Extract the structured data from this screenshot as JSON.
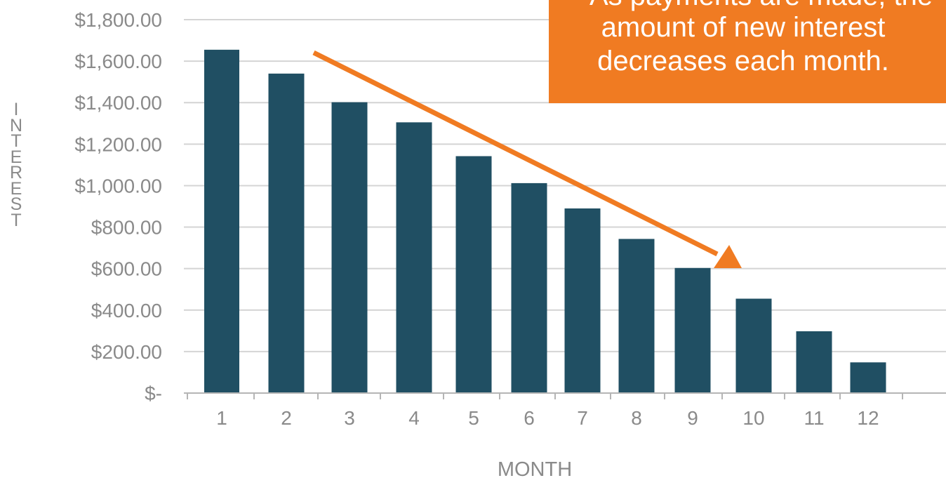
{
  "chart_data": {
    "type": "bar",
    "categories": [
      "1",
      "2",
      "3",
      "4",
      "5",
      "6",
      "7",
      "8",
      "9",
      "10",
      "11",
      "12"
    ],
    "values": [
      1655,
      1540,
      1402,
      1305,
      1142,
      1012,
      890,
      743,
      603,
      455,
      298,
      148
    ],
    "ylim": [
      0,
      1800
    ],
    "y_ticks": [
      {
        "value": 1800,
        "label": "$1,800.00"
      },
      {
        "value": 1600,
        "label": "$1,600.00"
      },
      {
        "value": 1400,
        "label": "$1,400.00"
      },
      {
        "value": 1200,
        "label": "$1,200.00"
      },
      {
        "value": 1000,
        "label": "$1,000.00"
      },
      {
        "value": 800,
        "label": "$800.00"
      },
      {
        "value": 600,
        "label": "$600.00"
      },
      {
        "value": 400,
        "label": "$400.00"
      },
      {
        "value": 200,
        "label": "$200.00"
      },
      {
        "value": 0,
        "label": "$-"
      }
    ],
    "xlabel": "MONTH",
    "ylabel": "INTEREST",
    "grid": true,
    "annotation": {
      "lines": [
        "As payments are made, the",
        "amount of new interest",
        "decreases each month."
      ],
      "arrow_direction": "down-right"
    },
    "colors": {
      "bar": "#204f63",
      "grid": "#d4d4d4",
      "axis_text": "#8a8a8a",
      "callout_background": "#f07b22",
      "callout_text": "#ffffff",
      "arrow": "#f07b22"
    }
  }
}
